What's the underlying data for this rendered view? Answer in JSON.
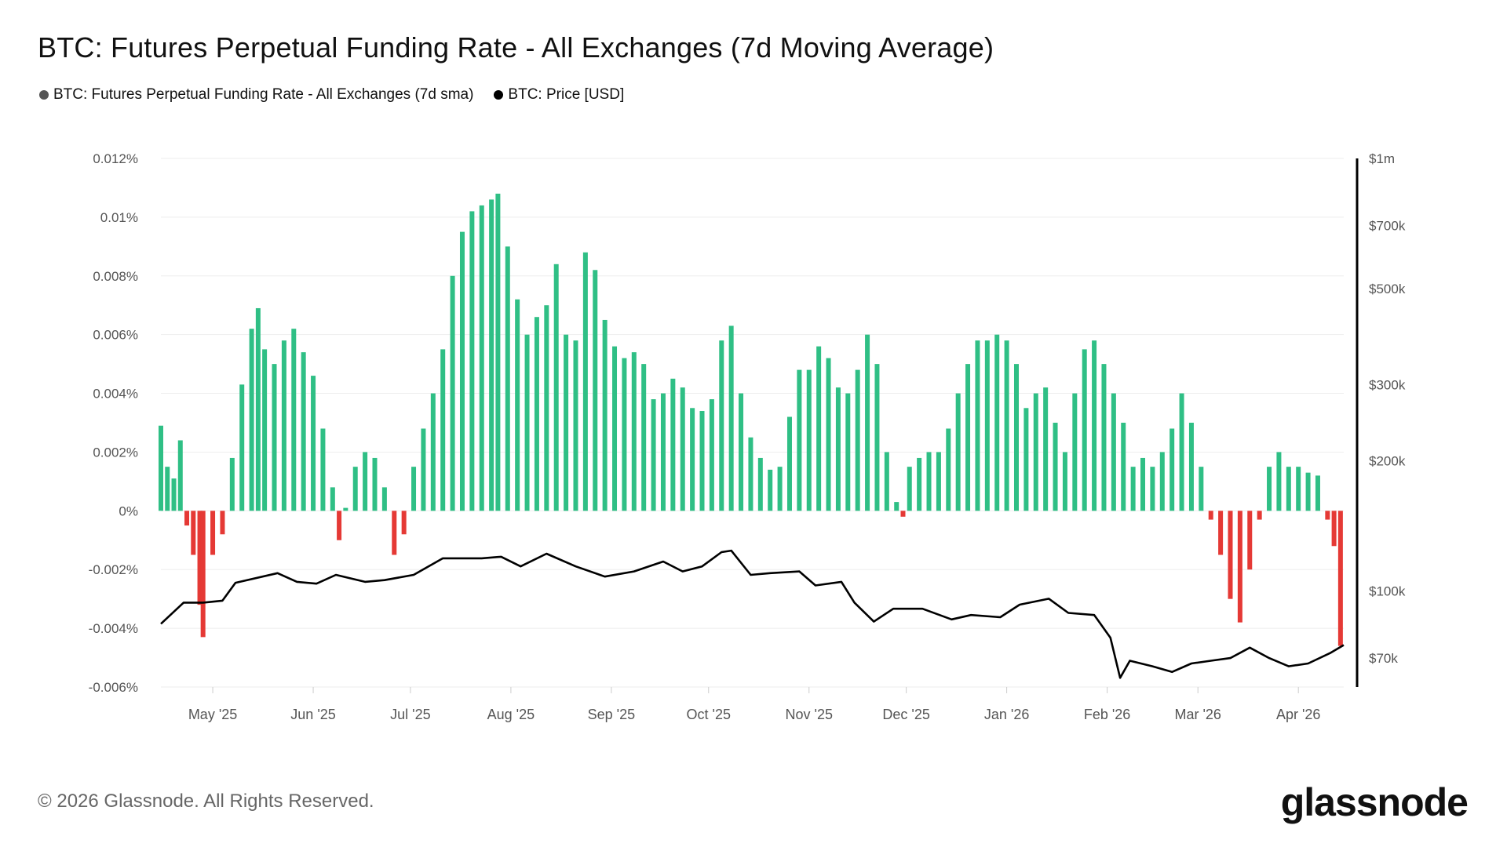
{
  "chart_data": {
    "type": "bar+line",
    "title": "BTC: Futures Perpetual Funding Rate - All Exchanges (7d Moving Average)",
    "legend": [
      {
        "name": "BTC: Futures Perpetual Funding Rate - All Exchanges (7d sma)",
        "color": "#555555"
      },
      {
        "name": "BTC: Price [USD]",
        "color": "#000000"
      }
    ],
    "legend_placement": "top-left",
    "grid": true,
    "colors": {
      "positive": "#2fbf85",
      "negative": "#e53935",
      "price": "#000000",
      "grid": "#eeeeee"
    },
    "x_range": [
      "2025-04-15",
      "2026-04-15"
    ],
    "x_ticks": [
      {
        "date": "2025-05-01",
        "label": "May '25"
      },
      {
        "date": "2025-06-01",
        "label": "Jun '25"
      },
      {
        "date": "2025-07-01",
        "label": "Jul '25"
      },
      {
        "date": "2025-08-01",
        "label": "Aug '25"
      },
      {
        "date": "2025-09-01",
        "label": "Sep '25"
      },
      {
        "date": "2025-10-01",
        "label": "Oct '25"
      },
      {
        "date": "2025-11-01",
        "label": "Nov '25"
      },
      {
        "date": "2025-12-01",
        "label": "Dec '25"
      },
      {
        "date": "2026-01-01",
        "label": "Jan '26"
      },
      {
        "date": "2026-02-01",
        "label": "Feb '26"
      },
      {
        "date": "2026-03-01",
        "label": "Mar '26"
      },
      {
        "date": "2026-04-01",
        "label": "Apr '26"
      }
    ],
    "y_left": {
      "unit": "percent",
      "ylim": [
        -0.006,
        0.012
      ],
      "ticks": [
        {
          "value": 0.012,
          "label": "0.012%"
        },
        {
          "value": 0.01,
          "label": "0.01%"
        },
        {
          "value": 0.008,
          "label": "0.008%"
        },
        {
          "value": 0.006,
          "label": "0.006%"
        },
        {
          "value": 0.004,
          "label": "0.004%"
        },
        {
          "value": 0.002,
          "label": "0.002%"
        },
        {
          "value": 0,
          "label": "0%"
        },
        {
          "value": -0.002,
          "label": "-0.002%"
        },
        {
          "value": -0.004,
          "label": "-0.004%"
        },
        {
          "value": -0.006,
          "label": "-0.006%"
        }
      ]
    },
    "y_right": {
      "scale": "log",
      "ylim": [
        60000,
        1000000
      ],
      "ticks": [
        {
          "value": 1000000,
          "label": "$1m"
        },
        {
          "value": 700000,
          "label": "$700k"
        },
        {
          "value": 500000,
          "label": "$500k"
        },
        {
          "value": 300000,
          "label": "$300k"
        },
        {
          "value": 200000,
          "label": "$200k"
        },
        {
          "value": 100000,
          "label": "$100k"
        },
        {
          "value": 70000,
          "label": "$70k"
        }
      ]
    },
    "funding_rate": [
      [
        "2025-04-15",
        0.0029
      ],
      [
        "2025-04-17",
        0.0015
      ],
      [
        "2025-04-19",
        0.0011
      ],
      [
        "2025-04-21",
        0.0024
      ],
      [
        "2025-04-23",
        -0.0005
      ],
      [
        "2025-04-25",
        -0.0015
      ],
      [
        "2025-04-27",
        -0.0032
      ],
      [
        "2025-04-28",
        -0.0043
      ],
      [
        "2025-05-01",
        -0.0015
      ],
      [
        "2025-05-04",
        -0.0008
      ],
      [
        "2025-05-07",
        0.0018
      ],
      [
        "2025-05-10",
        0.0043
      ],
      [
        "2025-05-13",
        0.0062
      ],
      [
        "2025-05-15",
        0.0069
      ],
      [
        "2025-05-17",
        0.0055
      ],
      [
        "2025-05-20",
        0.005
      ],
      [
        "2025-05-23",
        0.0058
      ],
      [
        "2025-05-26",
        0.0062
      ],
      [
        "2025-05-29",
        0.0054
      ],
      [
        "2025-06-01",
        0.0046
      ],
      [
        "2025-06-04",
        0.0028
      ],
      [
        "2025-06-07",
        0.0008
      ],
      [
        "2025-06-09",
        -0.001
      ],
      [
        "2025-06-11",
        0.0001
      ],
      [
        "2025-06-14",
        0.0015
      ],
      [
        "2025-06-17",
        0.002
      ],
      [
        "2025-06-20",
        0.0018
      ],
      [
        "2025-06-23",
        0.0008
      ],
      [
        "2025-06-26",
        -0.0015
      ],
      [
        "2025-06-29",
        -0.0008
      ],
      [
        "2025-07-02",
        0.0015
      ],
      [
        "2025-07-05",
        0.0028
      ],
      [
        "2025-07-08",
        0.004
      ],
      [
        "2025-07-11",
        0.0055
      ],
      [
        "2025-07-14",
        0.008
      ],
      [
        "2025-07-17",
        0.0095
      ],
      [
        "2025-07-20",
        0.0102
      ],
      [
        "2025-07-23",
        0.0104
      ],
      [
        "2025-07-26",
        0.0106
      ],
      [
        "2025-07-28",
        0.0108
      ],
      [
        "2025-07-31",
        0.009
      ],
      [
        "2025-08-03",
        0.0072
      ],
      [
        "2025-08-06",
        0.006
      ],
      [
        "2025-08-09",
        0.0066
      ],
      [
        "2025-08-12",
        0.007
      ],
      [
        "2025-08-15",
        0.0084
      ],
      [
        "2025-08-18",
        0.006
      ],
      [
        "2025-08-21",
        0.0058
      ],
      [
        "2025-08-24",
        0.0088
      ],
      [
        "2025-08-27",
        0.0082
      ],
      [
        "2025-08-30",
        0.0065
      ],
      [
        "2025-09-02",
        0.0056
      ],
      [
        "2025-09-05",
        0.0052
      ],
      [
        "2025-09-08",
        0.0054
      ],
      [
        "2025-09-11",
        0.005
      ],
      [
        "2025-09-14",
        0.0038
      ],
      [
        "2025-09-17",
        0.004
      ],
      [
        "2025-09-20",
        0.0045
      ],
      [
        "2025-09-23",
        0.0042
      ],
      [
        "2025-09-26",
        0.0035
      ],
      [
        "2025-09-29",
        0.0034
      ],
      [
        "2025-10-02",
        0.0038
      ],
      [
        "2025-10-05",
        0.0058
      ],
      [
        "2025-10-08",
        0.0063
      ],
      [
        "2025-10-11",
        0.004
      ],
      [
        "2025-10-14",
        0.0025
      ],
      [
        "2025-10-17",
        0.0018
      ],
      [
        "2025-10-20",
        0.0014
      ],
      [
        "2025-10-23",
        0.0015
      ],
      [
        "2025-10-26",
        0.0032
      ],
      [
        "2025-10-29",
        0.0048
      ],
      [
        "2025-11-01",
        0.0048
      ],
      [
        "2025-11-04",
        0.0056
      ],
      [
        "2025-11-07",
        0.0052
      ],
      [
        "2025-11-10",
        0.0042
      ],
      [
        "2025-11-13",
        0.004
      ],
      [
        "2025-11-16",
        0.0048
      ],
      [
        "2025-11-19",
        0.006
      ],
      [
        "2025-11-22",
        0.005
      ],
      [
        "2025-11-25",
        0.002
      ],
      [
        "2025-11-28",
        0.0003
      ],
      [
        "2025-11-30",
        -0.0002
      ],
      [
        "2025-12-02",
        0.0015
      ],
      [
        "2025-12-05",
        0.0018
      ],
      [
        "2025-12-08",
        0.002
      ],
      [
        "2025-12-11",
        0.002
      ],
      [
        "2025-12-14",
        0.0028
      ],
      [
        "2025-12-17",
        0.004
      ],
      [
        "2025-12-20",
        0.005
      ],
      [
        "2025-12-23",
        0.0058
      ],
      [
        "2025-12-26",
        0.0058
      ],
      [
        "2025-12-29",
        0.006
      ],
      [
        "2026-01-01",
        0.0058
      ],
      [
        "2026-01-04",
        0.005
      ],
      [
        "2026-01-07",
        0.0035
      ],
      [
        "2026-01-10",
        0.004
      ],
      [
        "2026-01-13",
        0.0042
      ],
      [
        "2026-01-16",
        0.003
      ],
      [
        "2026-01-19",
        0.002
      ],
      [
        "2026-01-22",
        0.004
      ],
      [
        "2026-01-25",
        0.0055
      ],
      [
        "2026-01-28",
        0.0058
      ],
      [
        "2026-01-31",
        0.005
      ],
      [
        "2026-02-03",
        0.004
      ],
      [
        "2026-02-06",
        0.003
      ],
      [
        "2026-02-09",
        0.0015
      ],
      [
        "2026-02-12",
        0.0018
      ],
      [
        "2026-02-15",
        0.0015
      ],
      [
        "2026-02-18",
        0.002
      ],
      [
        "2026-02-21",
        0.0028
      ],
      [
        "2026-02-24",
        0.004
      ],
      [
        "2026-02-27",
        0.003
      ],
      [
        "2026-03-02",
        0.0015
      ],
      [
        "2026-03-05",
        -0.0003
      ],
      [
        "2026-03-08",
        -0.0015
      ],
      [
        "2026-03-11",
        -0.003
      ],
      [
        "2026-03-14",
        -0.0038
      ],
      [
        "2026-03-17",
        -0.002
      ],
      [
        "2026-03-20",
        -0.0003
      ],
      [
        "2026-03-23",
        0.0015
      ],
      [
        "2026-03-26",
        0.002
      ],
      [
        "2026-03-29",
        0.0015
      ],
      [
        "2026-04-01",
        0.0015
      ],
      [
        "2026-04-04",
        0.0013
      ],
      [
        "2026-04-07",
        0.0012
      ],
      [
        "2026-04-10",
        -0.0003
      ],
      [
        "2026-04-12",
        -0.0012
      ],
      [
        "2026-04-14",
        -0.0046
      ]
    ],
    "price_usd": [
      [
        "2025-04-15",
        84000
      ],
      [
        "2025-04-22",
        94000
      ],
      [
        "2025-04-28",
        94000
      ],
      [
        "2025-05-04",
        95000
      ],
      [
        "2025-05-08",
        104500
      ],
      [
        "2025-05-21",
        110000
      ],
      [
        "2025-05-27",
        105000
      ],
      [
        "2025-06-02",
        104000
      ],
      [
        "2025-06-08",
        109000
      ],
      [
        "2025-06-17",
        105000
      ],
      [
        "2025-06-23",
        106000
      ],
      [
        "2025-07-02",
        109000
      ],
      [
        "2025-07-11",
        119000
      ],
      [
        "2025-07-23",
        119000
      ],
      [
        "2025-07-29",
        120000
      ],
      [
        "2025-08-04",
        114000
      ],
      [
        "2025-08-12",
        122000
      ],
      [
        "2025-08-21",
        114000
      ],
      [
        "2025-08-30",
        108000
      ],
      [
        "2025-09-08",
        111000
      ],
      [
        "2025-09-17",
        117000
      ],
      [
        "2025-09-23",
        111000
      ],
      [
        "2025-09-29",
        114000
      ],
      [
        "2025-10-05",
        123000
      ],
      [
        "2025-10-08",
        124000
      ],
      [
        "2025-10-14",
        109000
      ],
      [
        "2025-10-20",
        110000
      ],
      [
        "2025-10-29",
        111000
      ],
      [
        "2025-11-03",
        103000
      ],
      [
        "2025-11-11",
        105000
      ],
      [
        "2025-11-15",
        94000
      ],
      [
        "2025-11-21",
        85000
      ],
      [
        "2025-11-27",
        91000
      ],
      [
        "2025-12-06",
        91000
      ],
      [
        "2025-12-15",
        86000
      ],
      [
        "2025-12-21",
        88000
      ],
      [
        "2025-12-30",
        87000
      ],
      [
        "2026-01-05",
        93000
      ],
      [
        "2026-01-14",
        96000
      ],
      [
        "2026-01-20",
        89000
      ],
      [
        "2026-01-28",
        88000
      ],
      [
        "2026-02-02",
        78000
      ],
      [
        "2026-02-05",
        63000
      ],
      [
        "2026-02-08",
        69000
      ],
      [
        "2026-02-15",
        67000
      ],
      [
        "2026-02-21",
        65000
      ],
      [
        "2026-02-27",
        68000
      ],
      [
        "2026-03-05",
        69000
      ],
      [
        "2026-03-11",
        70000
      ],
      [
        "2026-03-17",
        74000
      ],
      [
        "2026-03-23",
        70000
      ],
      [
        "2026-03-29",
        67000
      ],
      [
        "2026-04-04",
        68000
      ],
      [
        "2026-04-11",
        72000
      ],
      [
        "2026-04-15",
        75000
      ]
    ]
  },
  "footer": {
    "copyright": "© 2026 Glassnode. All Rights Reserved.",
    "logo": "glassnode"
  }
}
